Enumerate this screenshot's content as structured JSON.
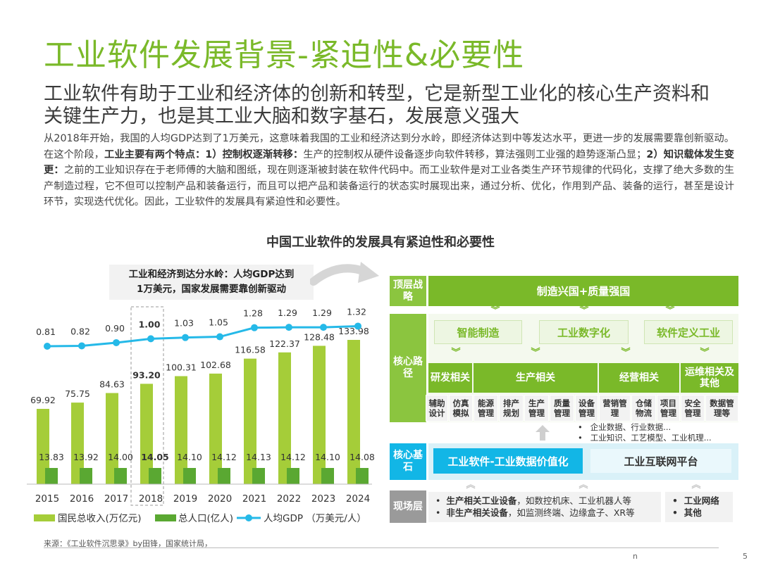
{
  "title": "工业软件发展背景-紧迫性&必要性",
  "subtitle": "工业软件有助于工业和经济体的创新和转型，它是新型工业化的核心生产资料和关键生产力，也是其工业大脑和数字基石，发展意义强大",
  "paragraph": {
    "p1": "从2018年开始，我国的人均GDP达到了1万美元，这意味着我国的工业和经济达到分水岭，即经济体达到中等发达水平，更进一步的发展需要靠创新驱动。在这个阶段，",
    "b1": "工业主要有两个特点：1）控制权逐渐转移：",
    "p2": "生产的控制权从硬件设备逐步向软件转移，算法强则工业强的趋势逐渐凸显；",
    "b2": "2）知识载体发生变更：",
    "p3": "之前的工业知识存在于老师傅的大脑和图纸，现在则逐渐被封装在软件代码中。而工业软件是对工业各类生产环节规律的代码化，支撑了绝大多数的生产制造过程，它不但可以控制产品和装备运行，而且可以把产品和装备运行的状态实时展现出来，通过分析、优化，作用到产品、装备的运行，甚至是设计环节，实现迭代优化。因此，工业软件的发展具有紧迫性和必要性。"
  },
  "figure_title": "中国工业软件的发展具有紧迫性和必要性",
  "callout": {
    "line1": "工业和经济到达分水岭：人均GDP达到",
    "line2": "1万美元，国家发展需要靠创新驱动"
  },
  "chart_data": {
    "type": "bar+line",
    "categories": [
      "2015",
      "2016",
      "2017",
      "2018",
      "2019",
      "2020",
      "2021",
      "2022",
      "2023",
      "2024"
    ],
    "highlight_category": "2018",
    "series": [
      {
        "name": "国民总收入(万亿元)",
        "kind": "bar",
        "color": "#a5cd39",
        "values": [
          69.92,
          75.75,
          84.63,
          93.2,
          100.31,
          102.68,
          116.58,
          122.37,
          128.48,
          133.98
        ],
        "labels": [
          "69.92",
          "75.75",
          "84.63",
          "93.20",
          "100.31",
          "102.68",
          "116.58",
          "122.37",
          "128.48",
          "133.98"
        ]
      },
      {
        "name": "总人口(亿人)",
        "kind": "bar",
        "color": "#5aa832",
        "values": [
          13.83,
          13.92,
          14.0,
          14.05,
          14.1,
          14.12,
          14.13,
          14.12,
          14.1,
          14.08
        ],
        "labels": [
          "13.83",
          "13.92",
          "14.00",
          "14.05",
          "14.10",
          "14.12",
          "14.13",
          "14.12",
          "14.10",
          "14.08"
        ]
      },
      {
        "name": "人均GDP （万美元/人）",
        "kind": "line",
        "color": "#25b9e8",
        "values": [
          0.81,
          0.82,
          0.9,
          1.0,
          1.03,
          1.05,
          1.28,
          1.29,
          1.29,
          1.32
        ],
        "labels": [
          "0.81",
          "0.82",
          "0.90",
          "1.00",
          "1.03",
          "1.05",
          "1.28",
          "1.29",
          "1.29",
          "1.32"
        ]
      }
    ]
  },
  "diagram": {
    "top_label": "顶层战略",
    "top_bar": "制造兴国+质量强国",
    "core_path_label": "核心路径",
    "path_boxes": [
      "智能制造",
      "工业数字化",
      "软件定义工业"
    ],
    "groups": [
      "研发相关",
      "生产相关",
      "经营相关",
      "运维相关及其他"
    ],
    "cells": [
      "辅助设计",
      "仿真模拟",
      "能源管理",
      "排产规划",
      "生产管理",
      "质量管理",
      "设备管理",
      "营销管理",
      "仓储物流",
      "项目管理",
      "安全管理",
      "数据管理等"
    ],
    "bullets": [
      "企业数据、行业数据...",
      "工业知识、工艺模型、工业机理..."
    ],
    "core_base_label": "核心基石",
    "core_left": "工业软件-工业数据价值化",
    "core_right": "工业互联网平台",
    "field_label": "现场层",
    "field_left": [
      {
        "bold": "生产相关工业设备",
        "rest": "，如数控机床、工业机器人等"
      },
      {
        "bold": "非生产相关设备",
        "rest": "，如监测终端、边缘盒子、XR等"
      }
    ],
    "field_right": [
      "工业网络",
      "其他"
    ]
  },
  "source": "来源：《工业软件沉思录》by田锋，国家统计局，",
  "footer_mark": "n",
  "page_number": "5",
  "colors": {
    "accent": "#7ab929",
    "line": "#25b9e8",
    "cyan": "#12b6e6"
  }
}
